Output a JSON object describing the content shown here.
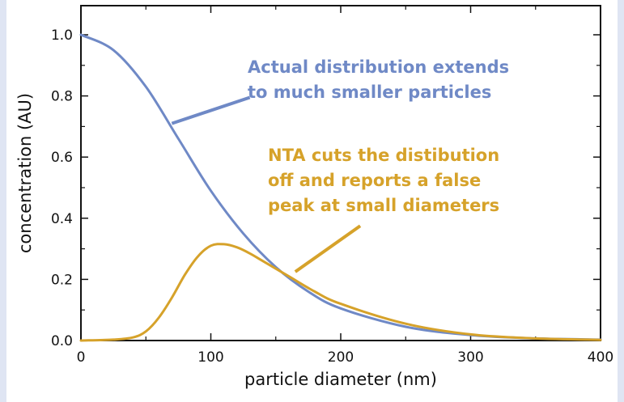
{
  "chart_data": {
    "type": "line",
    "title": "",
    "xlabel": "particle diameter (nm)",
    "ylabel": "concentration (AU)",
    "xlim": [
      0,
      400
    ],
    "ylim": [
      0,
      1.05
    ],
    "x_ticks": [
      "0",
      "100",
      "200",
      "300",
      "400"
    ],
    "y_ticks": [
      "0.0",
      "0.2",
      "0.4",
      "0.6",
      "0.8",
      "1.0"
    ],
    "grid": false,
    "legend": "none",
    "series": [
      {
        "color": "#6f89c6",
        "x": [
          0,
          25,
          50,
          75,
          100,
          125,
          150,
          175,
          200,
          250,
          300,
          350,
          400
        ],
        "y": [
          1.0,
          0.95,
          0.83,
          0.66,
          0.49,
          0.35,
          0.24,
          0.16,
          0.105,
          0.045,
          0.018,
          0.007,
          0.003
        ]
      },
      {
        "color": "#d6a22a",
        "x": [
          0,
          25,
          40,
          50,
          60,
          70,
          80,
          90,
          100,
          110,
          120,
          130,
          140,
          160,
          180,
          200,
          250,
          300,
          350,
          400
        ],
        "y": [
          0.0,
          0.003,
          0.01,
          0.03,
          0.075,
          0.14,
          0.215,
          0.275,
          0.31,
          0.315,
          0.305,
          0.285,
          0.26,
          0.21,
          0.16,
          0.12,
          0.055,
          0.02,
          0.007,
          0.002
        ]
      }
    ],
    "annotations": [
      {
        "lines": [
          "Actual distribution extends",
          "to much smaller particles"
        ],
        "color": "#6f89c6",
        "pointer_from": [
          130,
          0.795
        ],
        "pointer_to": [
          70,
          0.71
        ]
      },
      {
        "lines": [
          "NTA cuts the distibution",
          "off and reports a false",
          "peak at small diameters"
        ],
        "color": "#d6a22a",
        "pointer_from": [
          215,
          0.375
        ],
        "pointer_to": [
          165,
          0.225
        ]
      }
    ]
  }
}
